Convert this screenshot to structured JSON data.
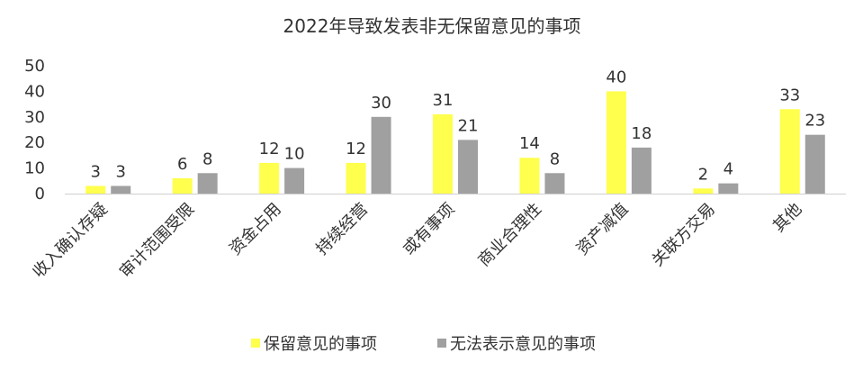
{
  "chart_data": {
    "type": "bar",
    "title": "2022年导致发表非无保留意见的事项",
    "xlabel": "",
    "ylabel": "",
    "ylim": [
      0,
      50
    ],
    "yticks": [
      0,
      10,
      20,
      30,
      40,
      50
    ],
    "grid": false,
    "legend_position": "bottom",
    "categories": [
      "收入确认存疑",
      "审计范围受限",
      "资金占用",
      "持续经营",
      "或有事项",
      "商业合理性",
      "资产减值",
      "关联方交易",
      "其他"
    ],
    "series": [
      {
        "name": "保留意见的事项",
        "color": "#ffff4d",
        "values": [
          3,
          6,
          12,
          12,
          31,
          14,
          40,
          2,
          33
        ]
      },
      {
        "name": "无法表示意见的事项",
        "color": "#a0a0a0",
        "values": [
          3,
          8,
          10,
          30,
          21,
          8,
          18,
          4,
          23
        ]
      }
    ]
  }
}
